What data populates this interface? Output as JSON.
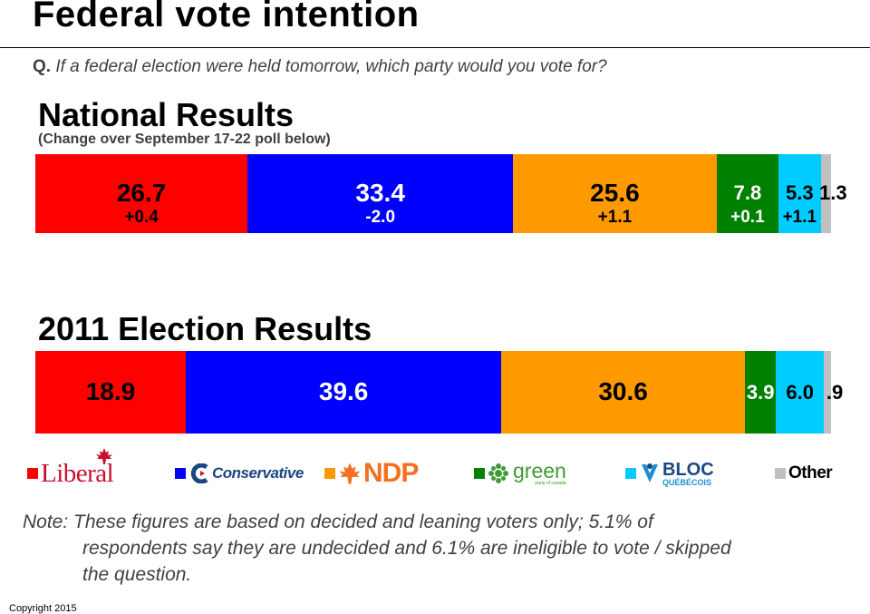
{
  "header": {
    "title": "Federal vote intention",
    "question_prefix": "Q.",
    "question": "If a federal election were held tomorrow, which party would you vote for?"
  },
  "chart_data": [
    {
      "type": "bar",
      "stacked": true,
      "orientation": "horizontal",
      "title": "National Results",
      "subtitle": "(Change over September 17-22 poll below)",
      "categories": [
        "Liberal",
        "Conservative",
        "NDP",
        "Green",
        "Bloc Québécois",
        "Other"
      ],
      "values": [
        26.7,
        33.4,
        25.6,
        7.8,
        5.3,
        1.3
      ],
      "labels": [
        "26.7",
        "33.4",
        "25.6",
        "7.8",
        "5.3",
        "1.3"
      ],
      "changes": [
        "+0.4",
        "-2.0",
        "+1.1",
        "+0.1",
        "+1.1",
        ""
      ],
      "colors": [
        "#ff0000",
        "#0000ff",
        "#ff9900",
        "#008000",
        "#00ccff",
        "#c0c0c0"
      ],
      "label_colors": [
        "#000000",
        "#ffffff",
        "#000000",
        "#ffffff",
        "#000000",
        "#000000"
      ],
      "xlim": [
        0,
        100
      ]
    },
    {
      "type": "bar",
      "stacked": true,
      "orientation": "horizontal",
      "title": "2011 Election Results",
      "categories": [
        "Liberal",
        "Conservative",
        "NDP",
        "Green",
        "Bloc Québécois",
        "Other"
      ],
      "values": [
        18.9,
        39.6,
        30.6,
        3.9,
        6.0,
        0.9
      ],
      "labels": [
        "18.9",
        "39.6",
        "30.6",
        "3.9",
        "6.0",
        ".9"
      ],
      "colors": [
        "#ff0000",
        "#0000ff",
        "#ff9900",
        "#008000",
        "#00ccff",
        "#c0c0c0"
      ],
      "label_colors": [
        "#000000",
        "#ffffff",
        "#000000",
        "#ffffff",
        "#000000",
        "#000000"
      ],
      "xlim": [
        0,
        100
      ]
    }
  ],
  "legend": {
    "liberal": {
      "text": "Liberal",
      "color": "#ff0000",
      "logo_color": "#c8102e"
    },
    "conservative": {
      "text": "Conservative",
      "color": "#0000ff",
      "logo_color": "#1a4782"
    },
    "ndp": {
      "text": "NDP",
      "color": "#ff9900",
      "logo_color": "#f37021"
    },
    "green": {
      "text": "green",
      "subtext": "party of canada",
      "color": "#008000",
      "logo_color": "#3d9b35"
    },
    "bloc": {
      "text": "BLOC",
      "subtext": "QUÉBÉCOIS",
      "color": "#00ccff",
      "logo_color": "#1c8ecf"
    },
    "other": {
      "text": "Other",
      "color": "#c0c0c0"
    }
  },
  "note": {
    "line1": "Note: These figures are based on decided and leaning voters only; 5.1% of",
    "line2": "respondents say they are undecided and 6.1% are ineligible to vote / skipped",
    "line3": "the question."
  },
  "footer": {
    "copyright": "Copyright 2015"
  }
}
